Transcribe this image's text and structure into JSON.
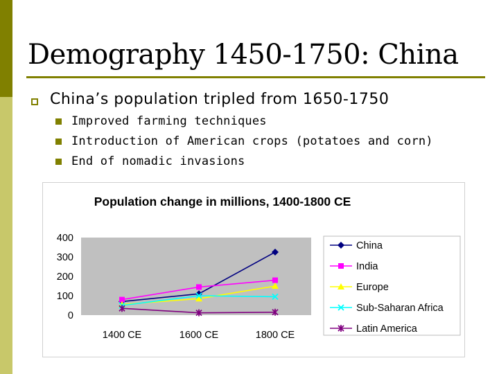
{
  "slide": {
    "title": "Demography 1450-1750: China",
    "bullet": "China’s population tripled from 1650-1750",
    "sub_bullets": [
      "Improved farming techniques",
      "Introduction of American crops (potatoes and corn)",
      "End of nomadic invasions"
    ],
    "colors": {
      "accent": "#808000",
      "accent_light": "#c8c86a"
    }
  },
  "chart_data": {
    "type": "line",
    "title": "Population change in millions, 1400-1800 CE",
    "categories": [
      "1400 CE",
      "1600 CE",
      "1800 CE"
    ],
    "ylim": [
      0,
      400
    ],
    "yticks": [
      "0",
      "100",
      "200",
      "300",
      "400"
    ],
    "grid": false,
    "legend": "right",
    "plot_background": "#c0c0c0",
    "series": [
      {
        "name": "China",
        "values": [
          70,
          110,
          325
        ],
        "color": "#000080",
        "marker": "diamond"
      },
      {
        "name": "India",
        "values": [
          80,
          145,
          180
        ],
        "color": "#ff00ff",
        "marker": "square"
      },
      {
        "name": "Europe",
        "values": [
          55,
          85,
          150
        ],
        "color": "#ffff00",
        "marker": "triangle"
      },
      {
        "name": "Sub-Saharan Africa",
        "values": [
          50,
          100,
          95
        ],
        "color": "#00ffff",
        "marker": "x"
      },
      {
        "name": "Latin America",
        "values": [
          35,
          12,
          15
        ],
        "color": "#800080",
        "marker": "asterisk"
      }
    ]
  }
}
